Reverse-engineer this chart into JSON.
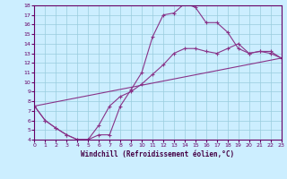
{
  "xlabel": "Windchill (Refroidissement éolien,°C)",
  "xlim": [
    0,
    23
  ],
  "ylim": [
    4,
    18
  ],
  "xticks": [
    0,
    1,
    2,
    3,
    4,
    5,
    6,
    7,
    8,
    9,
    10,
    11,
    12,
    13,
    14,
    15,
    16,
    17,
    18,
    19,
    20,
    21,
    22,
    23
  ],
  "yticks": [
    4,
    5,
    6,
    7,
    8,
    9,
    10,
    11,
    12,
    13,
    14,
    15,
    16,
    17,
    18
  ],
  "bg_color": "#cceeff",
  "line_color": "#883388",
  "grid_color": "#99ccdd",
  "line1_x": [
    0,
    1,
    2,
    3,
    4,
    5,
    6,
    7,
    8,
    9,
    10,
    11,
    12,
    13,
    14,
    15,
    16,
    17,
    18,
    19,
    20,
    21,
    22,
    23
  ],
  "line1_y": [
    7.5,
    6.0,
    5.2,
    4.5,
    4.0,
    4.0,
    4.5,
    4.5,
    7.5,
    9.2,
    11.0,
    14.7,
    17.0,
    17.2,
    18.2,
    17.8,
    16.2,
    16.2,
    15.2,
    13.5,
    13.0,
    13.2,
    13.0,
    12.5
  ],
  "line2_x": [
    0,
    1,
    2,
    3,
    4,
    5,
    6,
    7,
    8,
    9,
    10,
    11,
    12,
    13,
    14,
    15,
    16,
    17,
    18,
    19,
    20,
    21,
    22,
    23
  ],
  "line2_y": [
    7.5,
    6.0,
    5.2,
    4.5,
    4.0,
    4.0,
    5.5,
    7.5,
    8.5,
    9.0,
    9.8,
    10.8,
    11.8,
    13.0,
    13.5,
    13.5,
    13.2,
    13.0,
    13.5,
    14.0,
    13.0,
    13.2,
    13.2,
    12.5
  ],
  "line3_x": [
    0,
    23
  ],
  "line3_y": [
    7.5,
    12.5
  ]
}
